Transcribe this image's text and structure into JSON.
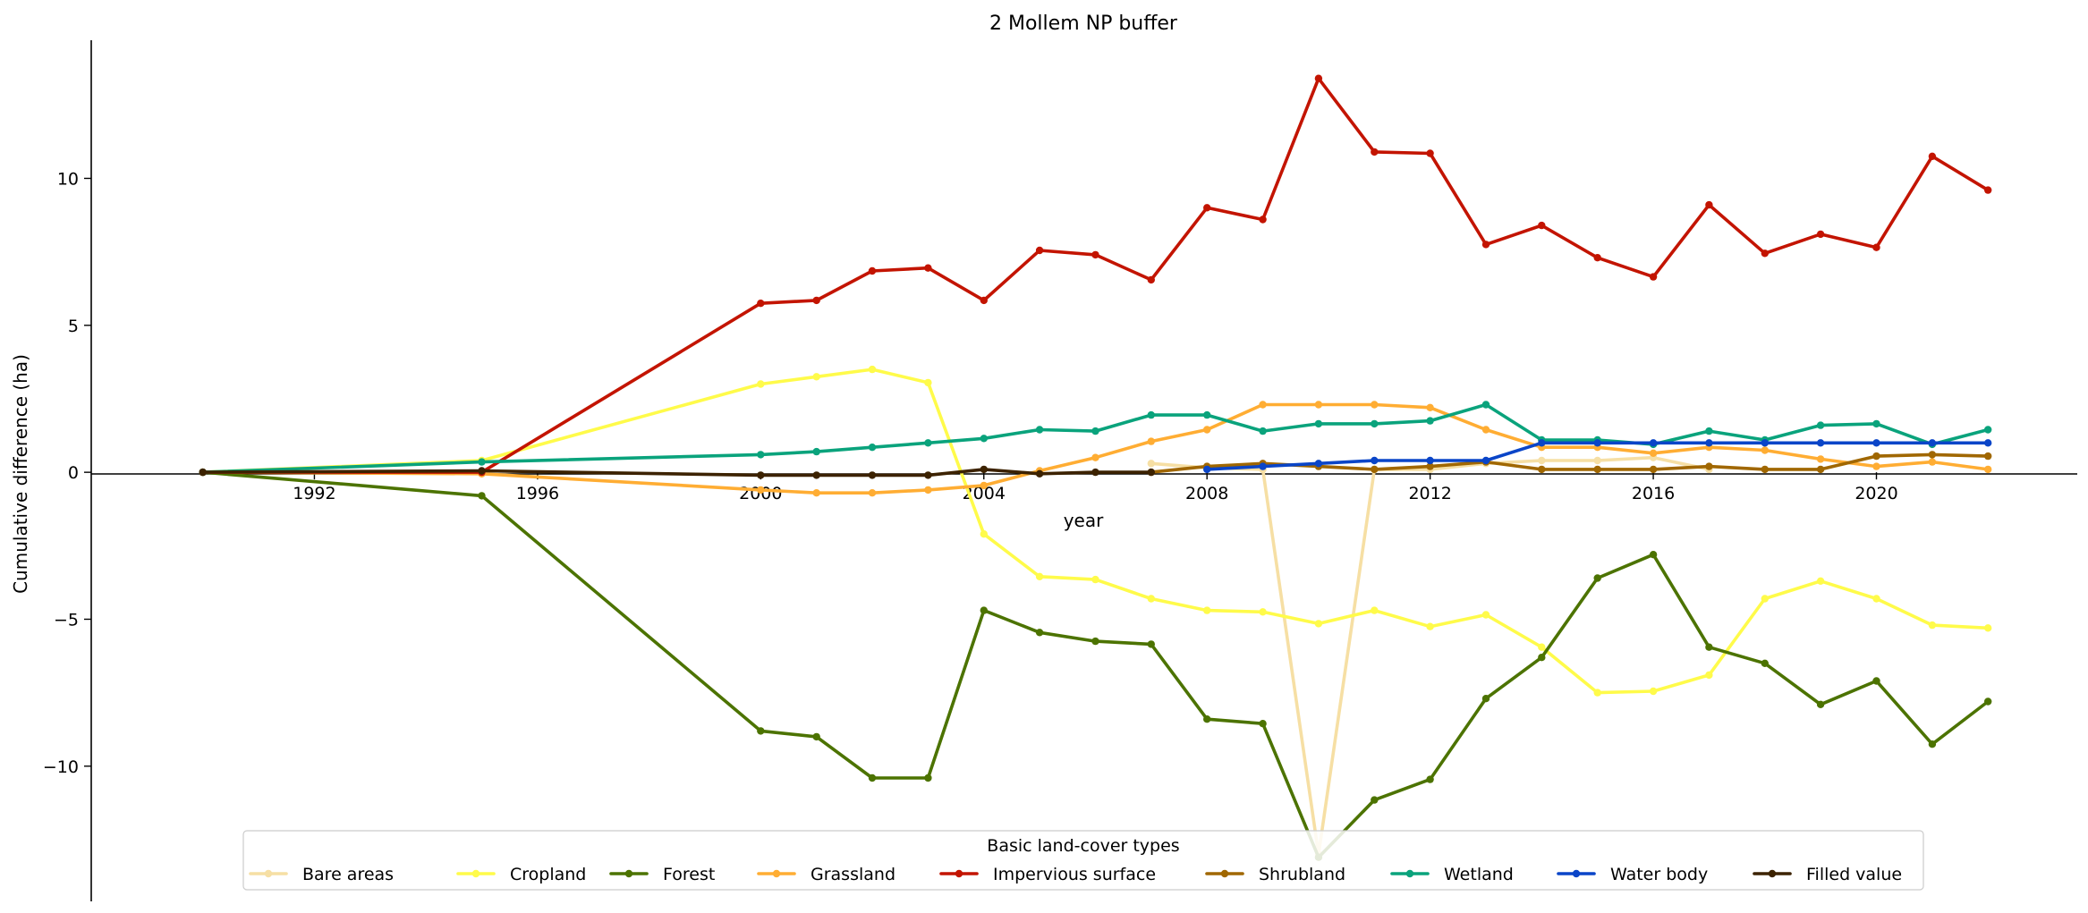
{
  "chart_data": {
    "type": "line",
    "title": "2 Mollem NP buffer",
    "xlabel": "year",
    "ylabel": "Cumulative difference (ha)",
    "xlim": [
      1988.0,
      2023.6
    ],
    "ylim": [
      -14.6,
      14.7
    ],
    "x_ticks": [
      1992,
      1996,
      2000,
      2004,
      2008,
      2012,
      2016,
      2020
    ],
    "y_ticks": [
      -10,
      -5,
      0,
      5,
      10
    ],
    "y_tick_labels": [
      "−10",
      "−5",
      "0",
      "5",
      "10"
    ],
    "grid": false,
    "legend": {
      "title": "Basic land-cover types",
      "placement": "bottom-center"
    },
    "series": [
      {
        "name": "Bare areas",
        "color": "#f6dfa4",
        "x": [
          2007,
          2008,
          2009,
          2010,
          2011,
          2012,
          2013,
          2014,
          2015,
          2016,
          2017
        ],
        "y": [
          0.3,
          0.15,
          0.1,
          -13.0,
          0.1,
          0.1,
          0.3,
          0.4,
          0.4,
          0.5,
          0.1
        ]
      },
      {
        "name": "Cropland",
        "color": "#fffb4a",
        "x": [
          1990,
          1995,
          2000,
          2001,
          2002,
          2003,
          2004,
          2005,
          2006,
          2007,
          2008,
          2009,
          2010,
          2011,
          2012,
          2013,
          2014,
          2015,
          2016,
          2017,
          2018,
          2019,
          2020,
          2021,
          2022
        ],
        "y": [
          0,
          0.4,
          3.0,
          3.25,
          3.5,
          3.05,
          -2.1,
          -3.55,
          -3.65,
          -4.3,
          -4.7,
          -4.75,
          -5.15,
          -4.7,
          -5.25,
          -4.85,
          -5.95,
          -7.5,
          -7.45,
          -6.9,
          -4.3,
          -3.7,
          -4.3,
          -5.2,
          -5.3
        ]
      },
      {
        "name": "Forest",
        "color": "#4c7300",
        "x": [
          1990,
          1995,
          2000,
          2001,
          2002,
          2003,
          2004,
          2005,
          2006,
          2007,
          2008,
          2009,
          2010,
          2011,
          2012,
          2013,
          2014,
          2015,
          2016,
          2017,
          2018,
          2019,
          2020,
          2021,
          2022
        ],
        "y": [
          0,
          -0.8,
          -8.8,
          -9.0,
          -10.4,
          -10.4,
          -4.7,
          -5.45,
          -5.75,
          -5.85,
          -8.4,
          -8.55,
          -13.1,
          -11.15,
          -10.45,
          -7.7,
          -6.3,
          -3.6,
          -2.8,
          -5.95,
          -6.5,
          -7.9,
          -7.1,
          -9.25,
          -7.8
        ]
      },
      {
        "name": "Grassland",
        "color": "#ffad33",
        "x": [
          1990,
          1995,
          2000,
          2001,
          2002,
          2003,
          2004,
          2005,
          2006,
          2007,
          2008,
          2009,
          2010,
          2011,
          2012,
          2013,
          2014,
          2015,
          2016,
          2017,
          2018,
          2019,
          2020,
          2021,
          2022
        ],
        "y": [
          0,
          -0.05,
          -0.6,
          -0.7,
          -0.7,
          -0.6,
          -0.45,
          0.05,
          0.5,
          1.05,
          1.45,
          2.3,
          2.3,
          2.3,
          2.2,
          1.45,
          0.85,
          0.85,
          0.65,
          0.85,
          0.75,
          0.45,
          0.2,
          0.35,
          0.1
        ]
      },
      {
        "name": "Impervious surface",
        "color": "#c31400",
        "x": [
          1990,
          1995,
          2000,
          2001,
          2002,
          2003,
          2004,
          2005,
          2006,
          2007,
          2008,
          2009,
          2010,
          2011,
          2012,
          2013,
          2014,
          2015,
          2016,
          2017,
          2018,
          2019,
          2020,
          2021,
          2022
        ],
        "y": [
          0,
          0,
          5.75,
          5.85,
          6.85,
          6.95,
          5.85,
          7.55,
          7.4,
          6.55,
          9.0,
          8.6,
          13.4,
          10.9,
          10.85,
          7.75,
          8.4,
          7.3,
          6.65,
          9.1,
          7.45,
          8.1,
          7.65,
          10.75,
          9.6
        ]
      },
      {
        "name": "Shrubland",
        "color": "#a06700",
        "x": [
          2007,
          2008,
          2009,
          2010,
          2011,
          2012,
          2013,
          2014,
          2015,
          2016,
          2017,
          2018,
          2019,
          2020,
          2021,
          2022
        ],
        "y": [
          0,
          0.2,
          0.3,
          0.2,
          0.1,
          0.2,
          0.35,
          0.1,
          0.1,
          0.1,
          0.2,
          0.1,
          0.1,
          0.55,
          0.6,
          0.55
        ]
      },
      {
        "name": "Wetland",
        "color": "#0aa37c",
        "x": [
          1990,
          1995,
          2000,
          2001,
          2002,
          2003,
          2004,
          2005,
          2006,
          2007,
          2008,
          2009,
          2010,
          2011,
          2012,
          2013,
          2014,
          2015,
          2016,
          2017,
          2018,
          2019,
          2020,
          2021,
          2022
        ],
        "y": [
          0,
          0.35,
          0.6,
          0.7,
          0.85,
          1.0,
          1.15,
          1.45,
          1.4,
          1.95,
          1.95,
          1.4,
          1.65,
          1.65,
          1.75,
          2.3,
          1.1,
          1.1,
          0.95,
          1.4,
          1.1,
          1.6,
          1.65,
          0.95,
          1.45
        ]
      },
      {
        "name": "Water body",
        "color": "#0a45c8",
        "x": [
          2008,
          2009,
          2010,
          2011,
          2012,
          2013,
          2014,
          2015,
          2016,
          2017,
          2018,
          2019,
          2020,
          2021,
          2022
        ],
        "y": [
          0.1,
          0.2,
          0.3,
          0.4,
          0.4,
          0.4,
          1.0,
          1.0,
          1.0,
          1.0,
          1.0,
          1.0,
          1.0,
          1.0,
          1.0
        ]
      },
      {
        "name": "Filled value",
        "color": "#3c2200",
        "x": [
          1990,
          1995,
          2000,
          2001,
          2002,
          2003,
          2004,
          2005,
          2006,
          2007
        ],
        "y": [
          0,
          0.05,
          -0.1,
          -0.1,
          -0.1,
          -0.1,
          0.1,
          -0.05,
          0,
          0
        ]
      }
    ]
  }
}
